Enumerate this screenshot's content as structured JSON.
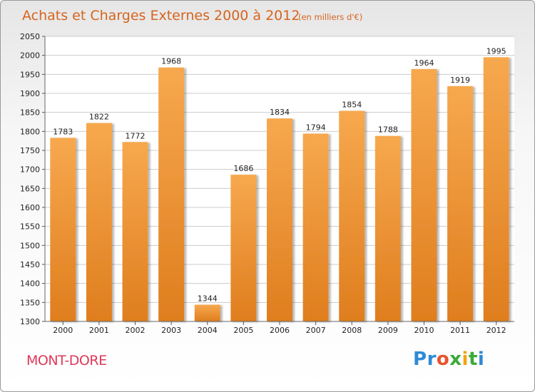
{
  "title": "Achats et Charges Externes 2000 à 2012",
  "subtitle": "(en milliers d'€)",
  "place": "MONT-DORE",
  "logo": {
    "text": "Proxiti",
    "letter_colors": [
      "#2e8ad6",
      "#2e8ad6",
      "#e8532e",
      "#3aaa3a",
      "#f2a310",
      "#3aaa3a",
      "#2e8ad6"
    ]
  },
  "colors": {
    "bar_top": "#f7a84e",
    "bar_bottom": "#df7e1e",
    "title": "#d6641e",
    "place": "#e0385a",
    "grid": "#cccccc"
  },
  "chart_data": {
    "type": "bar",
    "categories": [
      "2000",
      "2001",
      "2002",
      "2003",
      "2004",
      "2005",
      "2006",
      "2007",
      "2008",
      "2009",
      "2010",
      "2011",
      "2012"
    ],
    "values": [
      1783,
      1822,
      1772,
      1968,
      1344,
      1686,
      1834,
      1794,
      1854,
      1788,
      1964,
      1919,
      1995
    ],
    "ylim": [
      1300,
      2050
    ],
    "yticks": [
      1300,
      1350,
      1400,
      1450,
      1500,
      1550,
      1600,
      1650,
      1700,
      1750,
      1800,
      1850,
      1900,
      1950,
      2000,
      2050
    ],
    "grid": true,
    "title": "Achats et Charges Externes 2000 à 2012",
    "xlabel": "",
    "ylabel": ""
  }
}
